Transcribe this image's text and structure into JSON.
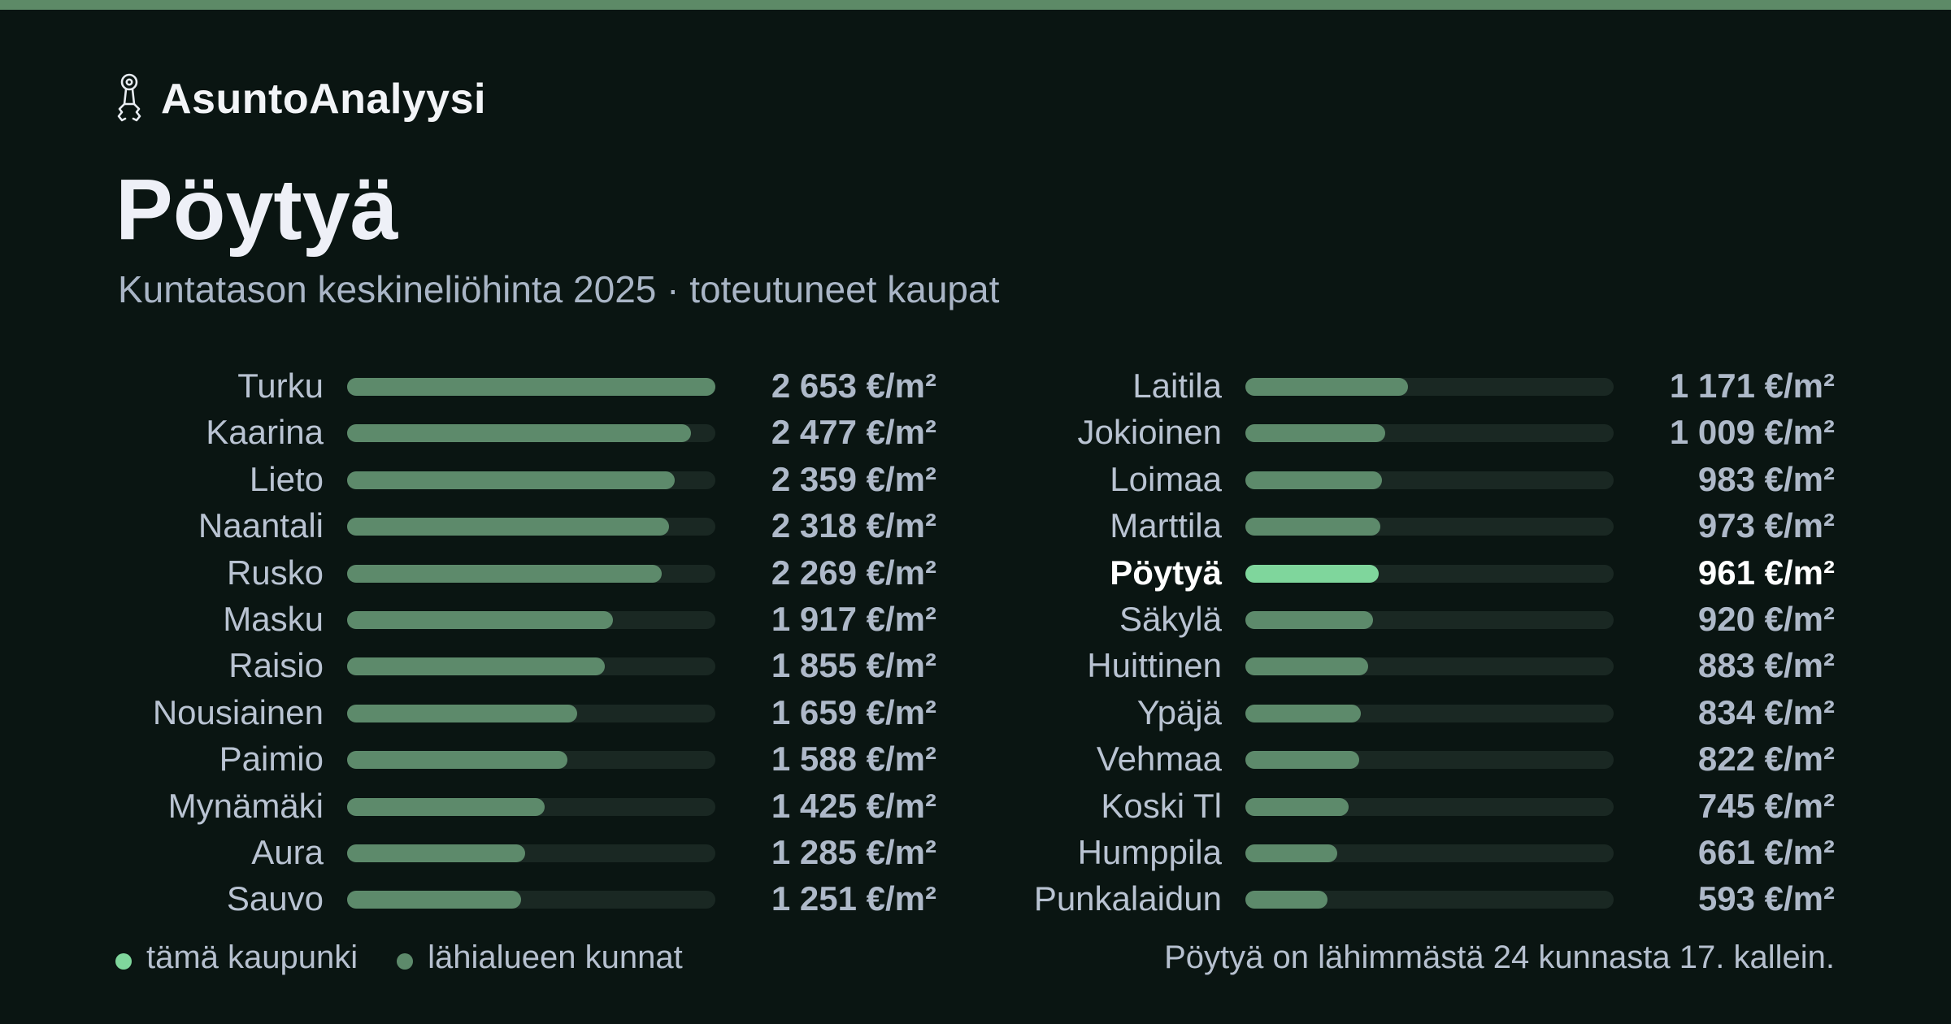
{
  "brand": {
    "name": "AsuntoAnalyysi",
    "icon": "keys-icon"
  },
  "title": "Pöytyä",
  "subtitle": "Kuntatason keskineliöhinta 2025 · toteutuneet kaupat",
  "colors": {
    "accent_bar": "#5d8a67",
    "highlight": "#7fd69c",
    "neighbor": "#5d8a6b",
    "background": "#0a1512",
    "track": "#1a2823"
  },
  "legend": {
    "highlight_label": "tämä kaupunki",
    "neighbor_label": "lähialueen kunnat"
  },
  "footnote": "Pöytyä on lähimmästä 24 kunnasta 17. kallein.",
  "chart_data": {
    "type": "bar",
    "orientation": "horizontal",
    "unit": "€/m²",
    "max_value": 2653,
    "highlight": "Pöytyä",
    "columns": [
      [
        {
          "name": "Turku",
          "value": 2653,
          "label": "2 653 €/m²"
        },
        {
          "name": "Kaarina",
          "value": 2477,
          "label": "2 477 €/m²"
        },
        {
          "name": "Lieto",
          "value": 2359,
          "label": "2 359 €/m²"
        },
        {
          "name": "Naantali",
          "value": 2318,
          "label": "2 318 €/m²"
        },
        {
          "name": "Rusko",
          "value": 2269,
          "label": "2 269 €/m²"
        },
        {
          "name": "Masku",
          "value": 1917,
          "label": "1 917 €/m²"
        },
        {
          "name": "Raisio",
          "value": 1855,
          "label": "1 855 €/m²"
        },
        {
          "name": "Nousiainen",
          "value": 1659,
          "label": "1 659 €/m²"
        },
        {
          "name": "Paimio",
          "value": 1588,
          "label": "1 588 €/m²"
        },
        {
          "name": "Mynämäki",
          "value": 1425,
          "label": "1 425 €/m²"
        },
        {
          "name": "Aura",
          "value": 1285,
          "label": "1 285 €/m²"
        },
        {
          "name": "Sauvo",
          "value": 1251,
          "label": "1 251 €/m²"
        }
      ],
      [
        {
          "name": "Laitila",
          "value": 1171,
          "label": "1 171 €/m²"
        },
        {
          "name": "Jokioinen",
          "value": 1009,
          "label": "1 009 €/m²"
        },
        {
          "name": "Loimaa",
          "value": 983,
          "label": "983 €/m²"
        },
        {
          "name": "Marttila",
          "value": 973,
          "label": "973 €/m²"
        },
        {
          "name": "Pöytyä",
          "value": 961,
          "label": "961 €/m²"
        },
        {
          "name": "Säkylä",
          "value": 920,
          "label": "920 €/m²"
        },
        {
          "name": "Huittinen",
          "value": 883,
          "label": "883 €/m²"
        },
        {
          "name": "Ypäjä",
          "value": 834,
          "label": "834 €/m²"
        },
        {
          "name": "Vehmaa",
          "value": 822,
          "label": "822 €/m²"
        },
        {
          "name": "Koski Tl",
          "value": 745,
          "label": "745 €/m²"
        },
        {
          "name": "Humppila",
          "value": 661,
          "label": "661 €/m²"
        },
        {
          "name": "Punkalaidun",
          "value": 593,
          "label": "593 €/m²"
        }
      ]
    ]
  }
}
